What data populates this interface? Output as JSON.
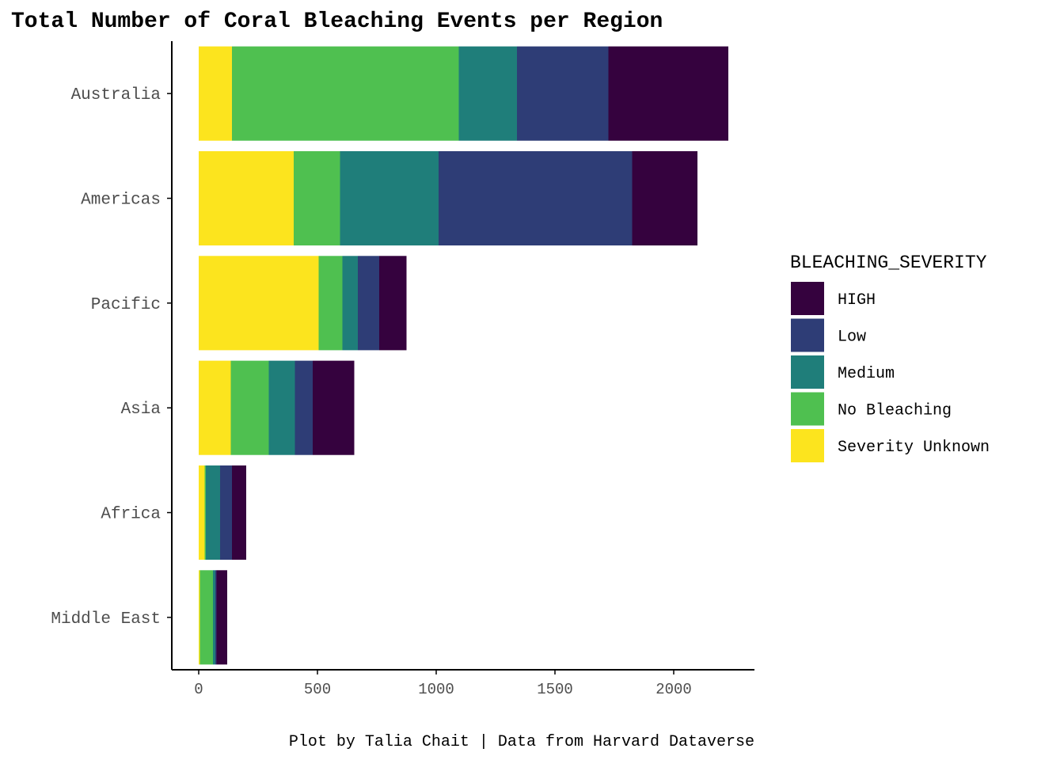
{
  "chart_data": {
    "type": "bar",
    "orientation": "horizontal",
    "stacked": true,
    "title": "Total Number of Coral Bleaching Events per Region",
    "caption": "Plot by Talia Chait | Data from Harvard Dataverse",
    "xlabel": "",
    "ylabel": "",
    "xlim": [
      -110,
      2340
    ],
    "xticks": [
      "0",
      "500",
      "1000",
      "1500",
      "2000"
    ],
    "xtick_values": [
      0,
      500,
      1000,
      1500,
      2000
    ],
    "grid": false,
    "legend": {
      "title": "BLEACHING_SEVERITY",
      "position": "right"
    },
    "categories": [
      "Australia",
      "Americas",
      "Pacific",
      "Asia",
      "Africa",
      "Middle East"
    ],
    "stack_order": [
      "Severity Unknown",
      "No Bleaching",
      "Medium",
      "Low",
      "HIGH"
    ],
    "series": [
      {
        "name": "HIGH",
        "color": "#35023E",
        "values": [
          505,
          275,
          115,
          175,
          60,
          45
        ]
      },
      {
        "name": "Low",
        "color": "#2E3D76",
        "values": [
          385,
          815,
          90,
          75,
          50,
          5
        ]
      },
      {
        "name": "Medium",
        "color": "#1F7E7A",
        "values": [
          245,
          415,
          65,
          110,
          60,
          10
        ]
      },
      {
        "name": "No Bleaching",
        "color": "#4FC050",
        "values": [
          955,
          195,
          100,
          160,
          5,
          55
        ]
      },
      {
        "name": "Severity Unknown",
        "color": "#FCE41E",
        "values": [
          140,
          400,
          505,
          135,
          25,
          5
        ]
      }
    ]
  }
}
